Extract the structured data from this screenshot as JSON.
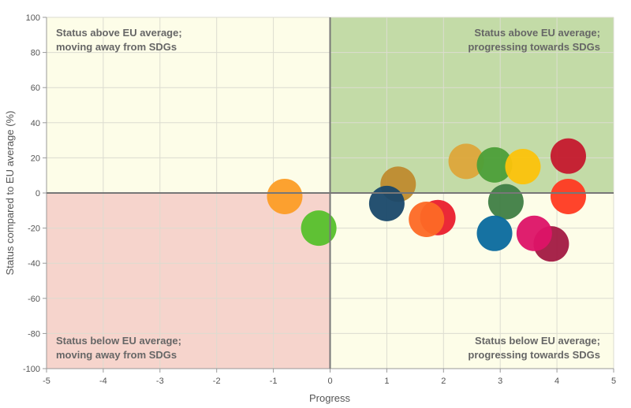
{
  "chart_data": {
    "type": "scatter",
    "title": "",
    "xlabel": "Progress",
    "ylabel": "Status compared to EU average (%)",
    "xlim": [
      -5,
      5
    ],
    "ylim": [
      -100,
      100
    ],
    "xticks": [
      "-5",
      "-4",
      "-3",
      "-2",
      "-1",
      "0",
      "1",
      "2",
      "3",
      "4",
      "5"
    ],
    "yticks": [
      "100",
      "80",
      "60",
      "40",
      "20",
      "0",
      "-20",
      "-40",
      "-60",
      "-80",
      "-100"
    ],
    "grid": true,
    "quadrants": {
      "top_left": {
        "line1": "Status above EU average;",
        "line2": "moving away from SDGs",
        "color": "#fdfde8"
      },
      "top_right": {
        "line1": "Status above EU average;",
        "line2": "progressing towards SDGs",
        "color": "#c3dba7"
      },
      "bottom_left": {
        "line1": "Status below EU average;",
        "line2": "moving away from SDGs",
        "color": "#f6d4cc"
      },
      "bottom_right": {
        "line1": "Status below EU average;",
        "line2": "progressing towards SDGs",
        "color": "#fdfde8"
      }
    },
    "points": [
      {
        "x": -0.8,
        "y": -2,
        "color": "#fc9d26"
      },
      {
        "x": -0.2,
        "y": -20,
        "color": "#56c02b"
      },
      {
        "x": 1.2,
        "y": 5,
        "color": "#bf8b2e"
      },
      {
        "x": 1.0,
        "y": -6,
        "color": "#19486a"
      },
      {
        "x": 1.9,
        "y": -14,
        "color": "#ea1d2d"
      },
      {
        "x": 1.7,
        "y": -15,
        "color": "#fd6925"
      },
      {
        "x": 2.4,
        "y": 18,
        "color": "#dda63a"
      },
      {
        "x": 2.9,
        "y": 16,
        "color": "#4c9f38"
      },
      {
        "x": 3.4,
        "y": 15,
        "color": "#fcc30b"
      },
      {
        "x": 3.1,
        "y": -5,
        "color": "#3f7e44"
      },
      {
        "x": 2.9,
        "y": -23,
        "color": "#0a6a9e"
      },
      {
        "x": 3.9,
        "y": -29,
        "color": "#a21942"
      },
      {
        "x": 3.6,
        "y": -23,
        "color": "#dd1367"
      },
      {
        "x": 4.2,
        "y": 21,
        "color": "#c5192d"
      },
      {
        "x": 4.2,
        "y": -2,
        "color": "#ff3a21"
      }
    ]
  }
}
